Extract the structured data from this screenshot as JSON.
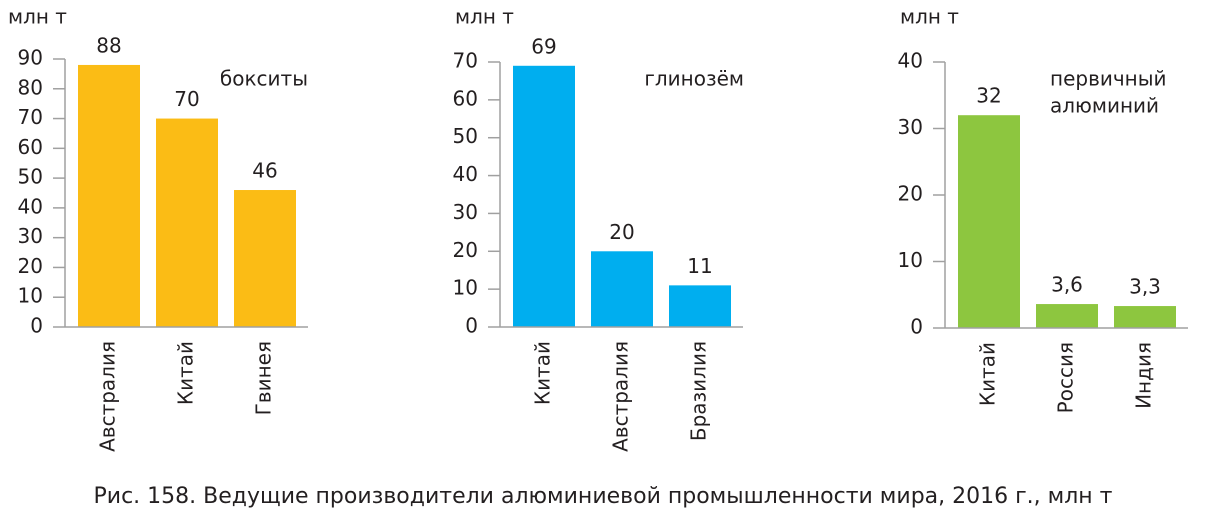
{
  "chart_data": [
    {
      "type": "bar",
      "y_label": "млн т",
      "annotation": [
        "бокситы"
      ],
      "categories": [
        "Австралия",
        "Китай",
        "Гвинея"
      ],
      "values": [
        88,
        70,
        46
      ],
      "color": "#fbbc15",
      "ylim": [
        0,
        90
      ],
      "yticks": [
        0,
        10,
        20,
        30,
        40,
        50,
        60,
        70,
        80,
        90
      ]
    },
    {
      "type": "bar",
      "y_label": "млн т",
      "annotation": [
        "глинозём"
      ],
      "categories": [
        "Китай",
        "Австралия",
        "Бразилия"
      ],
      "values": [
        69,
        20,
        11
      ],
      "color": "#00aeef",
      "ylim": [
        0,
        70
      ],
      "yticks": [
        0,
        10,
        20,
        30,
        40,
        50,
        60,
        70
      ]
    },
    {
      "type": "bar",
      "y_label": "млн т",
      "annotation": [
        "первичный",
        "алюминий"
      ],
      "categories": [
        "Китай",
        "Россия",
        "Индия"
      ],
      "values": [
        32,
        3.6,
        3.3
      ],
      "value_labels": [
        "32",
        "3,6",
        "3,3"
      ],
      "color": "#8dc63f",
      "ylim": [
        0,
        40
      ],
      "yticks": [
        0,
        10,
        20,
        30,
        40
      ]
    }
  ],
  "caption": "Рис. 158. Ведущие производители алюминиевой промышленности мира, 2016 г., млн т"
}
